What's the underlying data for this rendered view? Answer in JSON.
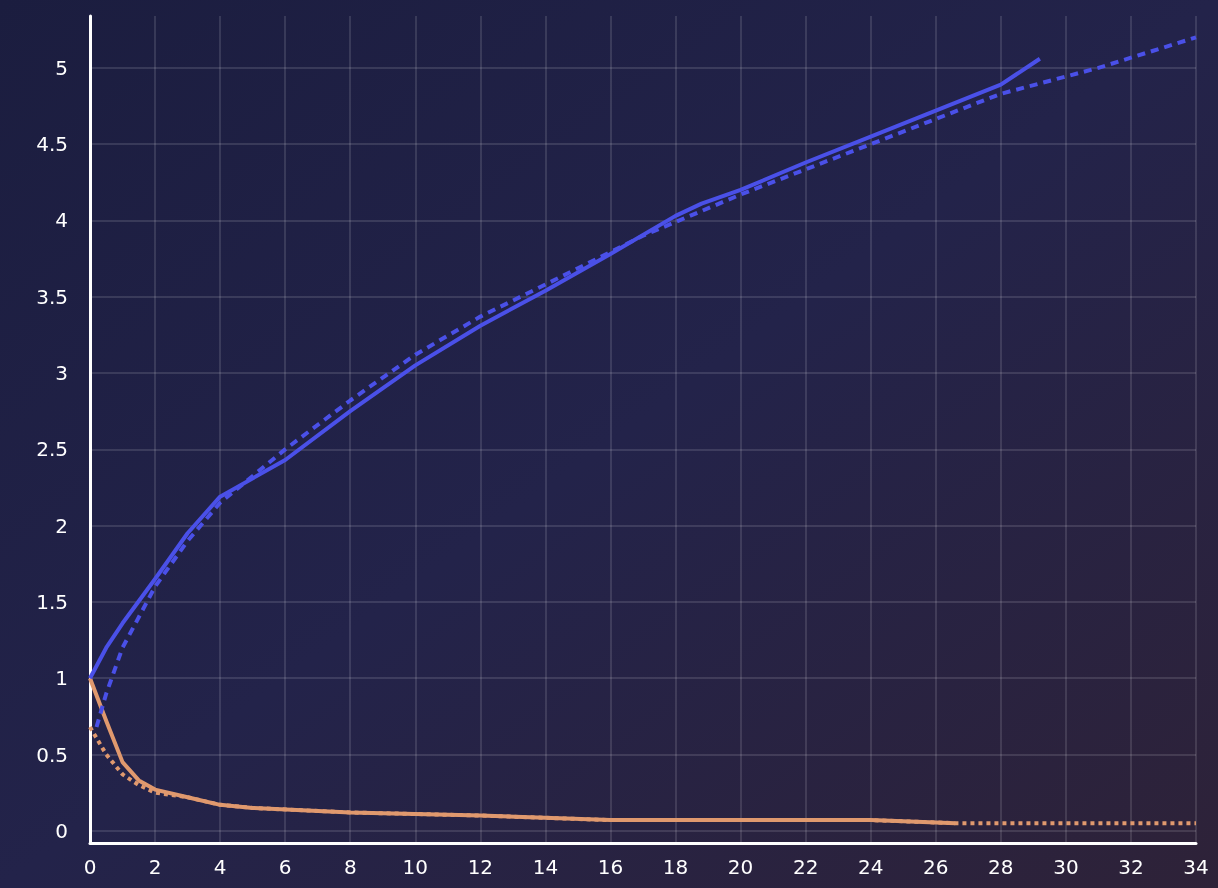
{
  "chart_data": {
    "type": "line",
    "xlim": [
      0,
      34
    ],
    "xticks": [
      0,
      2,
      4,
      6,
      8,
      10,
      12,
      14,
      16,
      18,
      20,
      22,
      24,
      26,
      28,
      30,
      32,
      34
    ],
    "ylim": [
      -0.08,
      5.34
    ],
    "yticks": [
      0,
      0.5,
      1,
      1.5,
      2,
      2.5,
      3,
      3.5,
      4,
      4.5,
      5
    ],
    "grid": true,
    "marker": "none",
    "series": [
      {
        "color": "#4a50e8",
        "line_style": "solid",
        "x": [
          0,
          0.5,
          1,
          2,
          3,
          4,
          6,
          8,
          10,
          12,
          14,
          16,
          18,
          18.8,
          20,
          22,
          24,
          26,
          28,
          29.2
        ],
        "values": [
          1,
          1.2,
          1.36,
          1.65,
          1.95,
          2.19,
          2.43,
          2.75,
          3.05,
          3.31,
          3.54,
          3.78,
          4.03,
          4.11,
          4.2,
          4.38,
          4.55,
          4.72,
          4.89,
          5.06
        ]
      },
      {
        "color": "#4a50e8",
        "line_style": "dashed",
        "x": [
          0.2,
          0.5,
          1,
          2,
          3,
          4,
          6,
          8,
          10,
          12,
          14,
          17,
          20,
          24,
          28,
          31,
          34
        ],
        "values": [
          0.68,
          0.9,
          1.2,
          1.6,
          1.9,
          2.15,
          2.5,
          2.82,
          3.12,
          3.37,
          3.58,
          3.9,
          4.17,
          4.5,
          4.83,
          5.0,
          5.2
        ]
      },
      {
        "color": "#e0996e",
        "line_style": "solid",
        "x": [
          0,
          0.5,
          1,
          1.5,
          2,
          3,
          4,
          5,
          8,
          12,
          16,
          20,
          24,
          26.6
        ],
        "values": [
          1,
          0.72,
          0.45,
          0.33,
          0.27,
          0.22,
          0.17,
          0.15,
          0.12,
          0.1,
          0.07,
          0.07,
          0.07,
          0.05
        ]
      },
      {
        "color": "#e0996e",
        "line_style": "dotted",
        "x": [
          0,
          0.5,
          1,
          1.5,
          2,
          3,
          4,
          5,
          8,
          12,
          16,
          20,
          24,
          26.6,
          30,
          34
        ],
        "values": [
          0.68,
          0.5,
          0.37,
          0.3,
          0.25,
          0.22,
          0.17,
          0.15,
          0.12,
          0.1,
          0.07,
          0.07,
          0.07,
          0.05,
          0.05,
          0.05
        ]
      }
    ]
  }
}
